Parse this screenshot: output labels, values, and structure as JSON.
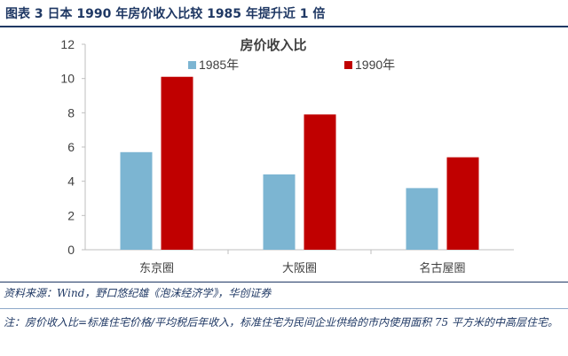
{
  "figure": {
    "title": "图表 3 日本 1990 年房价收入比较 1985 年提升近 1 倍",
    "source": "资料来源：Wind，野口悠纪雄《泡沫经济学》，华创证券",
    "note": "注：房价收入比=标准住宅价格/平均税后年收入，标准住宅为民间企业供给的市内使用面积 75 平方米的中高层住宅。"
  },
  "chart_data": {
    "type": "bar",
    "title": "房价收入比",
    "categories": [
      "东京圈",
      "大阪圈",
      "名古屋圈"
    ],
    "series": [
      {
        "name": "1985年",
        "values": [
          5.7,
          4.4,
          3.6
        ],
        "color": "#7cb5d2"
      },
      {
        "name": "1990年",
        "values": [
          10.1,
          7.9,
          5.4
        ],
        "color": "#c00000"
      }
    ],
    "ylim": [
      0,
      12
    ],
    "yticks": [
      0,
      2,
      4,
      6,
      8,
      10,
      12
    ],
    "grid": false,
    "legend": "top"
  }
}
